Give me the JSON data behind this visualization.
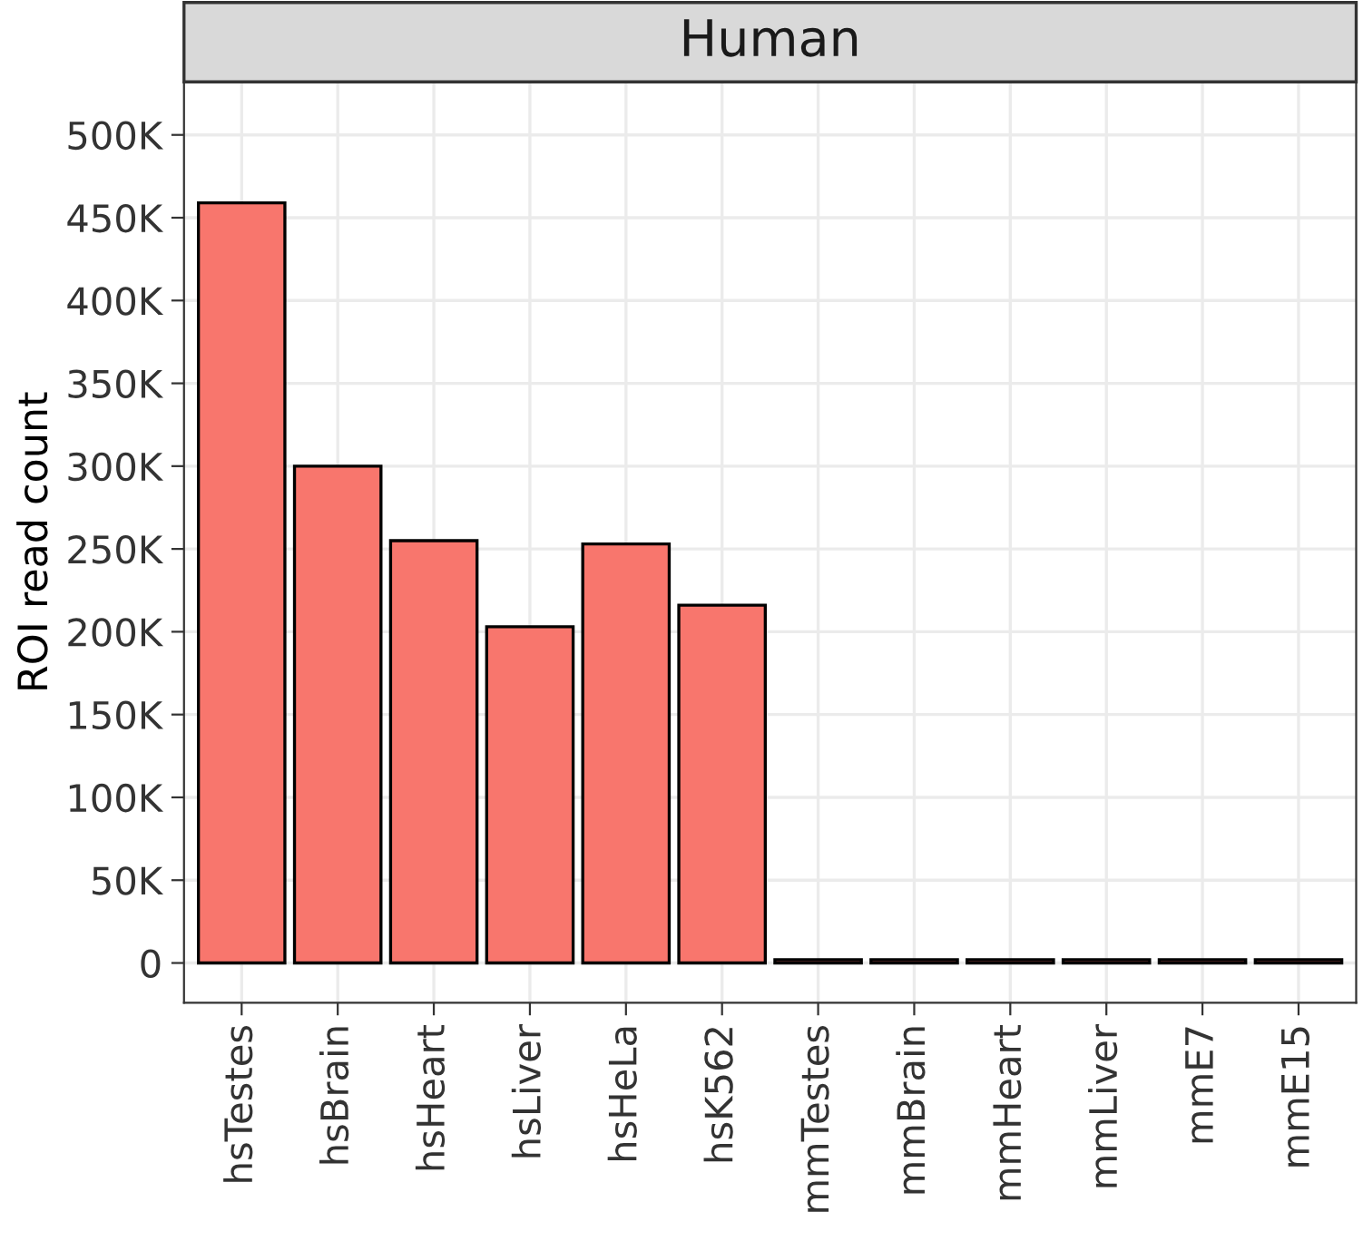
{
  "chart_data": {
    "type": "bar",
    "title": "Human",
    "ylabel": "ROI read count",
    "categories": [
      "hsTestes",
      "hsBrain",
      "hsHeart",
      "hsLiver",
      "hsHeLa",
      "hsK562",
      "mmTestes",
      "mmBrain",
      "mmHeart",
      "mmLiver",
      "mmE7",
      "mmE15"
    ],
    "values": [
      459000,
      300000,
      255000,
      203000,
      253000,
      216000,
      2000,
      2000,
      2000,
      2000,
      2000,
      2000
    ],
    "color": "#f8766d",
    "ylim": [
      -24000,
      532000
    ],
    "yticks": [
      {
        "value": 0,
        "label": "0"
      },
      {
        "value": 50000,
        "label": "50K"
      },
      {
        "value": 100000,
        "label": "100K"
      },
      {
        "value": 150000,
        "label": "150K"
      },
      {
        "value": 200000,
        "label": "200K"
      },
      {
        "value": 250000,
        "label": "250K"
      },
      {
        "value": 300000,
        "label": "300K"
      },
      {
        "value": 350000,
        "label": "350K"
      },
      {
        "value": 400000,
        "label": "400K"
      },
      {
        "value": 450000,
        "label": "450K"
      },
      {
        "value": 500000,
        "label": "500K"
      }
    ],
    "grid": true,
    "legend": false
  }
}
